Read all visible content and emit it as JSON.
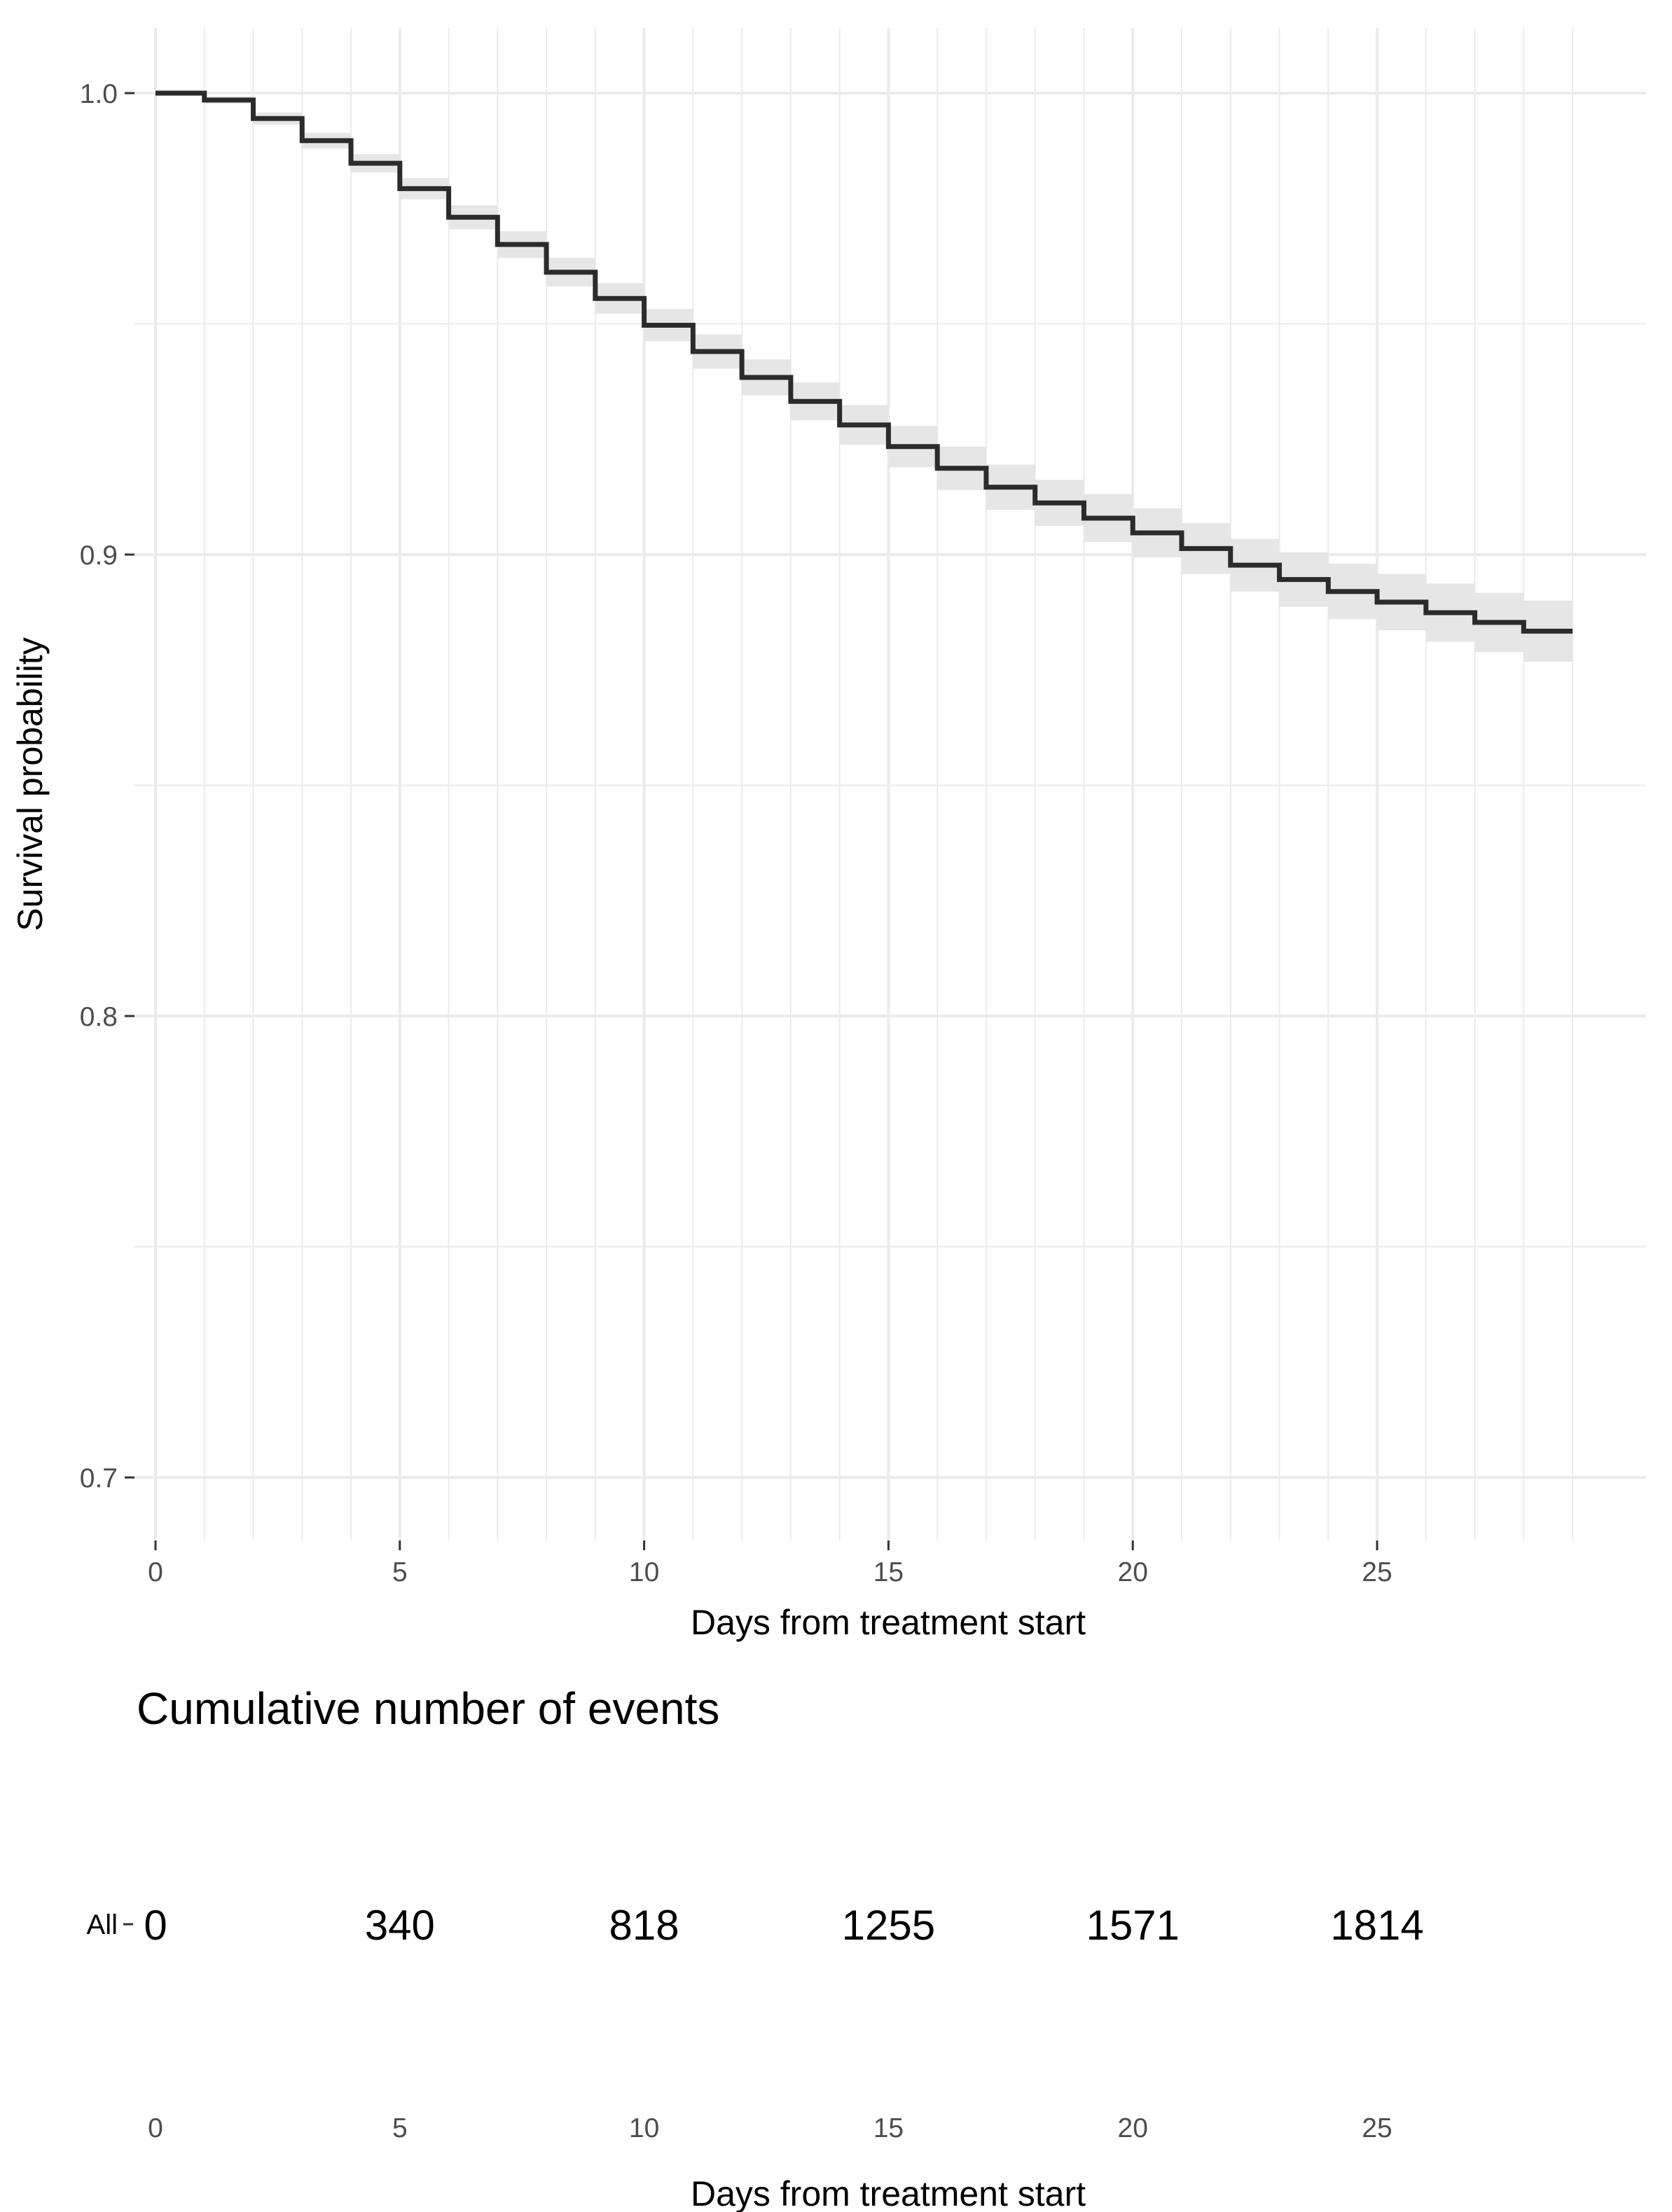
{
  "chart_data": {
    "type": "line",
    "subtype": "kaplan-meier-step",
    "title": "",
    "xlabel": "Days from treatment start",
    "ylabel": "Survival probability",
    "xlim": [
      0,
      30
    ],
    "ylim": [
      0.7,
      1.0
    ],
    "x_ticks": [
      0,
      5,
      10,
      15,
      20,
      25
    ],
    "y_ticks": [
      0.7,
      0.8,
      0.9,
      1.0
    ],
    "y_tick_labels": [
      "0.7",
      "0.8",
      "0.9",
      "1.0"
    ],
    "grid": true,
    "series": [
      {
        "name": "All",
        "color": "#2b2b2b",
        "ci_color": "#e6e6e6",
        "times": [
          0,
          1,
          2,
          3,
          4,
          5,
          6,
          7,
          8,
          9,
          10,
          11,
          12,
          13,
          14,
          15,
          16,
          17,
          18,
          19,
          20,
          21,
          22,
          23,
          24,
          25,
          26,
          27,
          28,
          29
        ],
        "survival": [
          1.0,
          0.9985,
          0.9945,
          0.9897,
          0.9848,
          0.9793,
          0.9731,
          0.9672,
          0.9612,
          0.9555,
          0.9497,
          0.944,
          0.9384,
          0.9332,
          0.9281,
          0.9234,
          0.9187,
          0.9146,
          0.9112,
          0.9079,
          0.9047,
          0.9013,
          0.8977,
          0.8946,
          0.892,
          0.8897,
          0.8874,
          0.8853,
          0.8834,
          0.8834
        ],
        "ci_lower": [
          1.0,
          0.9977,
          0.9932,
          0.988,
          0.9828,
          0.977,
          0.9705,
          0.9643,
          0.9581,
          0.9522,
          0.9462,
          0.9403,
          0.9345,
          0.9291,
          0.9238,
          0.9189,
          0.914,
          0.9097,
          0.9062,
          0.9027,
          0.8994,
          0.8958,
          0.892,
          0.8887,
          0.886,
          0.8836,
          0.8811,
          0.8789,
          0.8768,
          0.8768
        ],
        "ci_upper": [
          1.0,
          0.9993,
          0.9958,
          0.9914,
          0.9868,
          0.9816,
          0.9757,
          0.9701,
          0.9643,
          0.9588,
          0.9532,
          0.9477,
          0.9423,
          0.9373,
          0.9324,
          0.9279,
          0.9234,
          0.9195,
          0.9162,
          0.9131,
          0.91,
          0.9068,
          0.9034,
          0.9005,
          0.898,
          0.8958,
          0.8937,
          0.8917,
          0.89,
          0.89
        ]
      }
    ],
    "risk_table": {
      "title": "Cumulative number of events",
      "strata_label": "All",
      "xlabel": "Days from treatment start",
      "times": [
        0,
        5,
        10,
        15,
        20,
        25
      ],
      "values": [
        "0",
        "340",
        "818",
        "1255",
        "1571",
        "1814"
      ]
    }
  }
}
